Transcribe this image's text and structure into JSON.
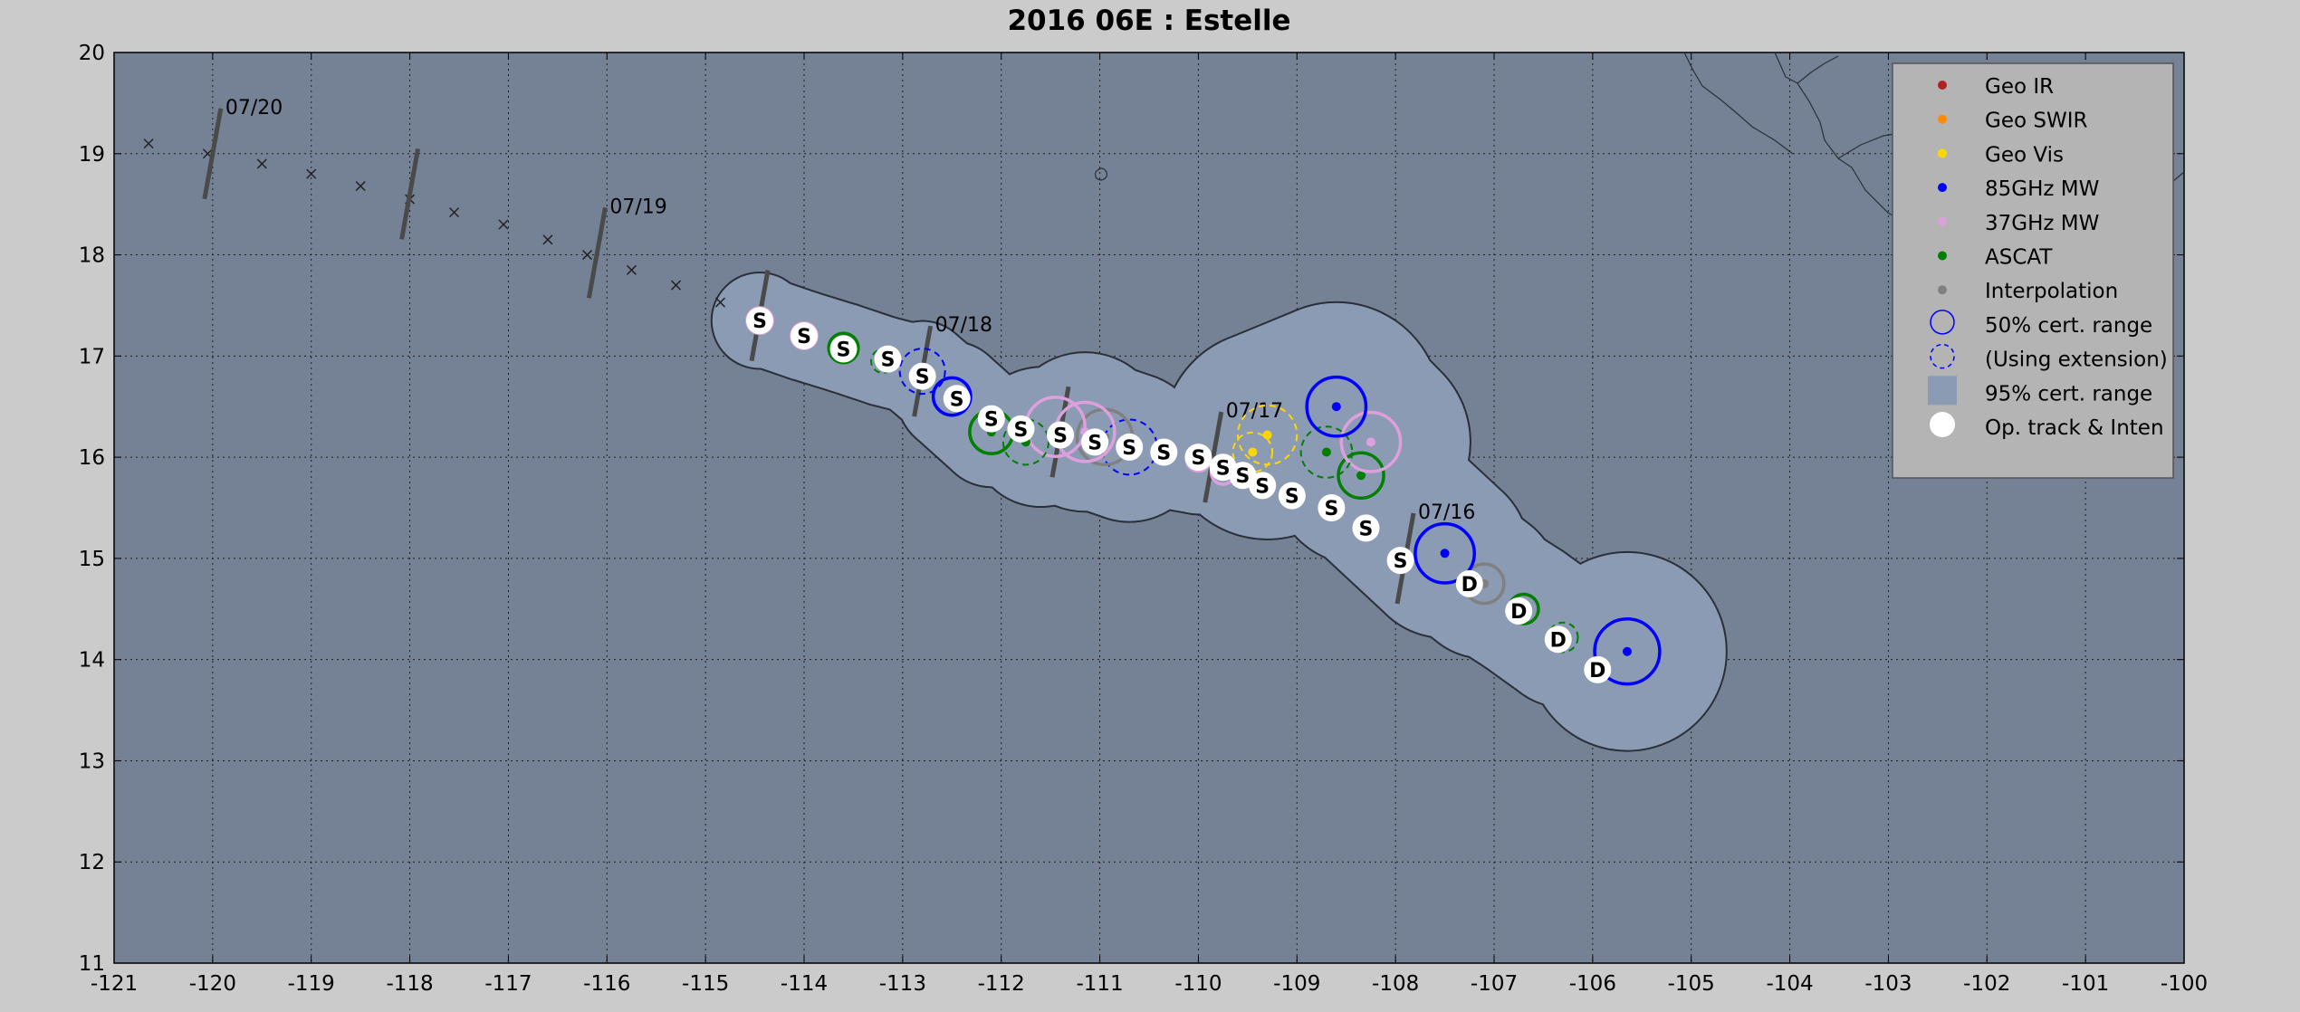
{
  "chart_data": {
    "type": "scatter",
    "title": "2016  06E :  Estelle",
    "xlim": [
      -121,
      -100
    ],
    "ylim": [
      11,
      20
    ],
    "xticks": [
      "-121",
      "-120",
      "-119",
      "-118",
      "-117",
      "-116",
      "-115",
      "-114",
      "-113",
      "-112",
      "-111",
      "-110",
      "-109",
      "-108",
      "-107",
      "-106",
      "-105",
      "-104",
      "-103",
      "-102",
      "-101",
      "-100"
    ],
    "yticks": [
      "11",
      "12",
      "13",
      "14",
      "15",
      "16",
      "17",
      "18",
      "19",
      "20"
    ],
    "grid": true,
    "legend_position": "top-right",
    "legend": [
      {
        "label": "Geo IR",
        "color": "#b22222",
        "kind": "dot"
      },
      {
        "label": "Geo SWIR",
        "color": "#ff8c00",
        "kind": "dot"
      },
      {
        "label": "Geo Vis",
        "color": "#ffd700",
        "kind": "dot"
      },
      {
        "label": "85GHz MW",
        "color": "#0000ff",
        "kind": "dot"
      },
      {
        "label": "37GHz MW",
        "color": "#dda0dd",
        "kind": "dot"
      },
      {
        "label": "ASCAT",
        "color": "#007f00",
        "kind": "dot"
      },
      {
        "label": "Interpolation",
        "color": "#808080",
        "kind": "dot"
      },
      {
        "label": "50% cert. range",
        "color": "#0000ff",
        "kind": "circle"
      },
      {
        "label": "(Using extension)",
        "color": "#0000ff",
        "kind": "dashed"
      },
      {
        "label": "95% cert. range",
        "color": "#8c9bb4",
        "kind": "square"
      },
      {
        "label": "Op. track & Inten",
        "color": "#ffffff",
        "kind": "whitedot"
      }
    ],
    "forecast_track": [
      [
        -120.65,
        19.1
      ],
      [
        -120.05,
        19.0
      ],
      [
        -119.5,
        18.9
      ],
      [
        -119.0,
        18.8
      ],
      [
        -118.5,
        18.68
      ],
      [
        -118.0,
        18.55
      ],
      [
        -117.55,
        18.42
      ],
      [
        -117.05,
        18.3
      ],
      [
        -116.6,
        18.15
      ],
      [
        -116.2,
        18.0
      ],
      [
        -115.75,
        17.85
      ],
      [
        -115.3,
        17.7
      ],
      [
        -114.85,
        17.53
      ]
    ],
    "date_marks": [
      {
        "label": "07/20",
        "x": -120.0,
        "y": 19.0
      },
      {
        "label": "",
        "x": -118.0,
        "y": 18.6
      },
      {
        "label": "07/19",
        "x": -116.1,
        "y": 18.02
      },
      {
        "label": "",
        "x": -114.45,
        "y": 17.4
      },
      {
        "label": "07/18",
        "x": -112.8,
        "y": 16.85
      },
      {
        "label": "",
        "x": -111.4,
        "y": 16.25
      },
      {
        "label": "07/17",
        "x": -109.85,
        "y": 16.0
      },
      {
        "label": "07/16",
        "x": -107.9,
        "y": 15.0
      }
    ],
    "op_track": [
      {
        "x": -105.95,
        "y": 13.9,
        "i": "D"
      },
      {
        "x": -106.35,
        "y": 14.2,
        "i": "D"
      },
      {
        "x": -106.75,
        "y": 14.48,
        "i": "D"
      },
      {
        "x": -107.25,
        "y": 14.75,
        "i": "D"
      },
      {
        "x": -107.95,
        "y": 14.98,
        "i": "S"
      },
      {
        "x": -108.3,
        "y": 15.3,
        "i": "S"
      },
      {
        "x": -108.65,
        "y": 15.5,
        "i": "S"
      },
      {
        "x": -109.05,
        "y": 15.62,
        "i": "S"
      },
      {
        "x": -109.35,
        "y": 15.72,
        "i": "S"
      },
      {
        "x": -109.55,
        "y": 15.82,
        "i": "S"
      },
      {
        "x": -109.75,
        "y": 15.9,
        "i": "S"
      },
      {
        "x": -110.0,
        "y": 16.0,
        "i": "S"
      },
      {
        "x": -110.35,
        "y": 16.05,
        "i": "S"
      },
      {
        "x": -110.7,
        "y": 16.1,
        "i": "S"
      },
      {
        "x": -111.05,
        "y": 16.15,
        "i": "S"
      },
      {
        "x": -111.4,
        "y": 16.22,
        "i": "S"
      },
      {
        "x": -111.8,
        "y": 16.28,
        "i": "S"
      },
      {
        "x": -112.1,
        "y": 16.38,
        "i": "S"
      },
      {
        "x": -112.45,
        "y": 16.58,
        "i": "S"
      },
      {
        "x": -112.8,
        "y": 16.8,
        "i": "S"
      },
      {
        "x": -113.15,
        "y": 16.97,
        "i": "S"
      },
      {
        "x": -113.6,
        "y": 17.07,
        "i": "S"
      },
      {
        "x": -114.0,
        "y": 17.2,
        "i": "S"
      },
      {
        "x": -114.45,
        "y": 17.35,
        "i": "S"
      }
    ],
    "fixes": [
      {
        "type": "85GHz MW",
        "x": -105.65,
        "y": 14.08,
        "r": 0.33,
        "dashed": false
      },
      {
        "type": "ASCAT",
        "x": -106.3,
        "y": 14.22,
        "r": 0.15,
        "dashed": true
      },
      {
        "type": "ASCAT",
        "x": -106.7,
        "y": 14.5,
        "r": 0.15,
        "dashed": false
      },
      {
        "type": "Interpolation",
        "x": -107.1,
        "y": 14.75,
        "r": 0.2,
        "dashed": false
      },
      {
        "type": "85GHz MW",
        "x": -107.5,
        "y": 15.05,
        "r": 0.3,
        "dashed": false
      },
      {
        "type": "ASCAT",
        "x": -108.35,
        "y": 15.82,
        "r": 0.23,
        "dashed": false
      },
      {
        "type": "37GHz MW",
        "x": -108.25,
        "y": 16.15,
        "r": 0.3,
        "dashed": false
      },
      {
        "type": "ASCAT",
        "x": -108.7,
        "y": 16.05,
        "r": 0.26,
        "dashed": true
      },
      {
        "type": "85GHz MW",
        "x": -108.6,
        "y": 16.5,
        "r": 0.3,
        "dashed": false
      },
      {
        "type": "Geo Vis",
        "x": -109.3,
        "y": 16.22,
        "r": 0.3,
        "dashed": true
      },
      {
        "type": "Geo Vis",
        "x": -109.45,
        "y": 16.05,
        "r": 0.2,
        "dashed": true
      },
      {
        "type": "37GHz MW",
        "x": -109.75,
        "y": 15.85,
        "r": 0.12,
        "dashed": false
      },
      {
        "type": "37GHz MW",
        "x": -110.0,
        "y": 15.98,
        "r": 0.12,
        "dashed": false
      },
      {
        "type": "85GHz MW",
        "x": -110.7,
        "y": 16.1,
        "r": 0.28,
        "dashed": true
      },
      {
        "type": "Interpolation",
        "x": -110.95,
        "y": 16.2,
        "r": 0.28,
        "dashed": false
      },
      {
        "type": "37GHz MW",
        "x": -111.15,
        "y": 16.25,
        "r": 0.3,
        "dashed": false
      },
      {
        "type": "37GHz MW",
        "x": -111.45,
        "y": 16.3,
        "r": 0.3,
        "dashed": false
      },
      {
        "type": "ASCAT",
        "x": -111.75,
        "y": 16.15,
        "r": 0.23,
        "dashed": true
      },
      {
        "type": "ASCAT",
        "x": -112.1,
        "y": 16.25,
        "r": 0.22,
        "dashed": false
      },
      {
        "type": "85GHz MW",
        "x": -112.5,
        "y": 16.6,
        "r": 0.19,
        "dashed": false
      },
      {
        "type": "85GHz MW",
        "x": -112.8,
        "y": 16.85,
        "r": 0.23,
        "dashed": true
      },
      {
        "type": "ASCAT",
        "x": -113.2,
        "y": 16.95,
        "r": 0.12,
        "dashed": true
      },
      {
        "type": "ASCAT",
        "x": -113.6,
        "y": 17.08,
        "r": 0.15,
        "dashed": false
      },
      {
        "type": "37GHz MW",
        "x": -114.0,
        "y": 17.2,
        "r": 0.13,
        "dashed": false
      },
      {
        "type": "37GHz MW",
        "x": -114.45,
        "y": 17.35,
        "r": 0.13,
        "dashed": false
      }
    ],
    "uncertainty_95": [
      [
        -105.65,
        14.08,
        1.0
      ],
      [
        -106.3,
        14.22,
        0.7
      ],
      [
        -106.7,
        14.5,
        0.7
      ],
      [
        -107.1,
        14.75,
        0.75
      ],
      [
        -107.5,
        15.05,
        0.85
      ],
      [
        -108.35,
        15.82,
        0.9
      ],
      [
        -108.25,
        16.15,
        1.0
      ],
      [
        -108.6,
        16.5,
        1.05
      ],
      [
        -109.3,
        16.22,
        1.05
      ],
      [
        -109.6,
        16.0,
        0.6
      ],
      [
        -110.0,
        15.98,
        0.55
      ],
      [
        -110.7,
        16.1,
        0.75
      ],
      [
        -111.15,
        16.25,
        0.8
      ],
      [
        -111.6,
        16.2,
        0.7
      ],
      [
        -112.1,
        16.25,
        0.55
      ],
      [
        -112.5,
        16.6,
        0.55
      ],
      [
        -112.8,
        16.85,
        0.5
      ],
      [
        -113.2,
        16.95,
        0.45
      ],
      [
        -113.6,
        17.08,
        0.45
      ],
      [
        -114.0,
        17.2,
        0.45
      ],
      [
        -114.45,
        17.35,
        0.48
      ]
    ]
  }
}
